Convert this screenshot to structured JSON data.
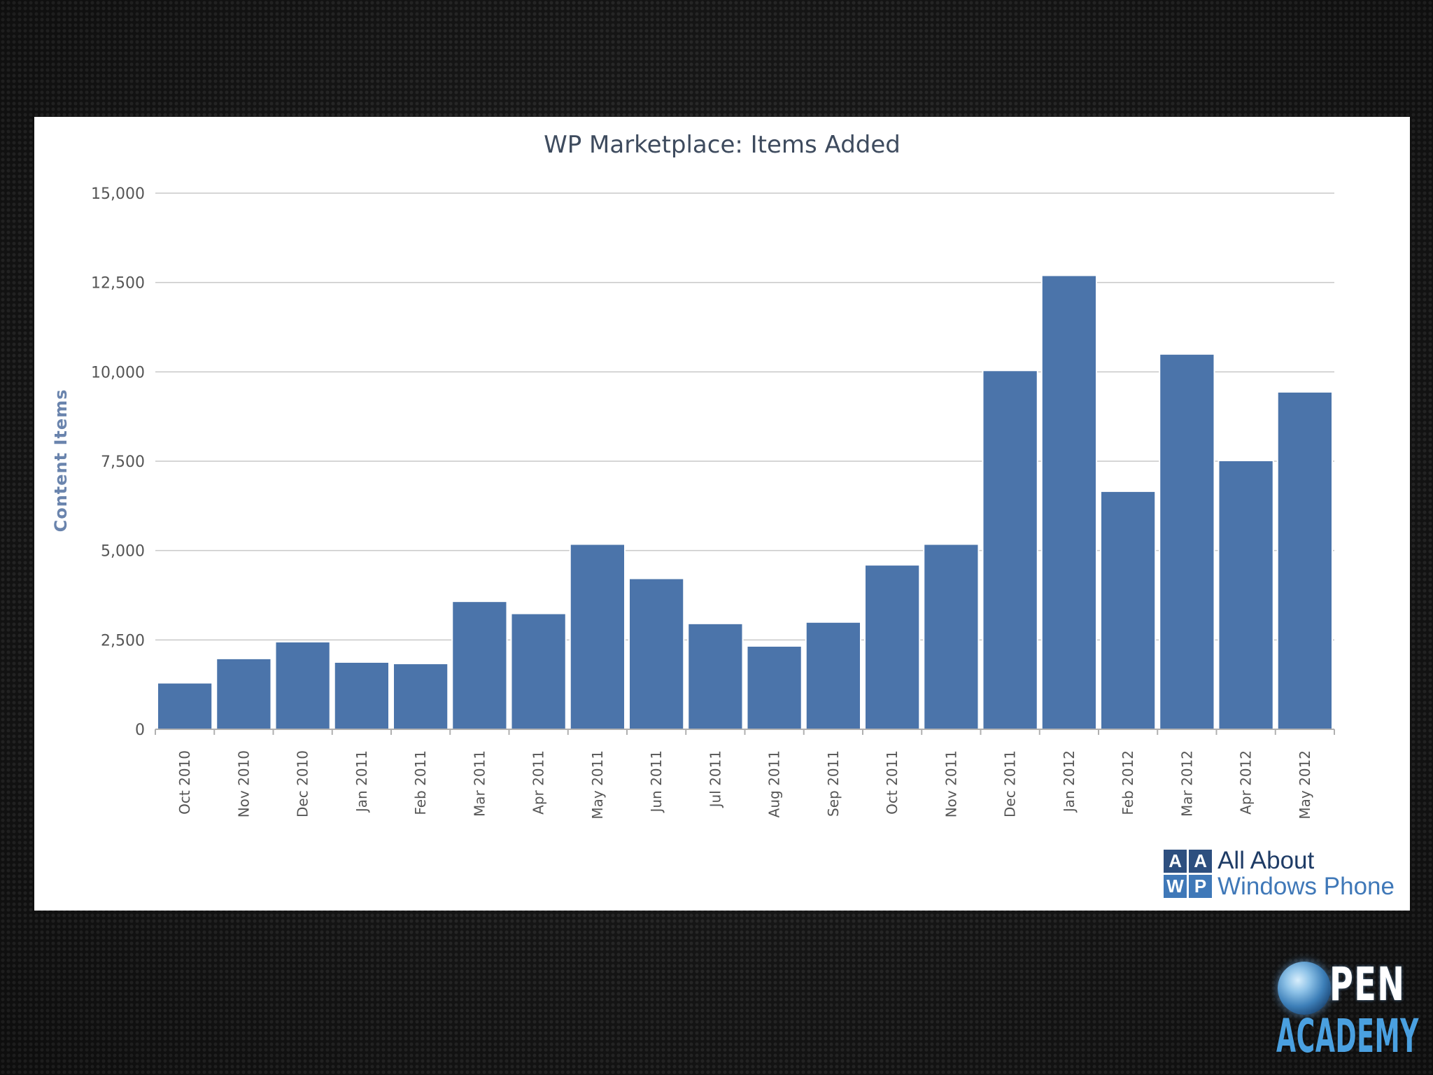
{
  "chart_data": {
    "type": "bar",
    "title": "WP Marketplace: Items Added",
    "xlabel": "",
    "ylabel": "Content Items",
    "ylim": [
      0,
      15000
    ],
    "yticks": [
      0,
      2500,
      5000,
      7500,
      10000,
      12500,
      15000
    ],
    "ytick_labels": [
      "0",
      "2,500",
      "5,000",
      "7,500",
      "10,000",
      "12,500",
      "15,000"
    ],
    "categories": [
      "Oct 2010",
      "Nov 2010",
      "Dec 2010",
      "Jan 2011",
      "Feb 2011",
      "Mar 2011",
      "Apr 2011",
      "May 2011",
      "Jun 2011",
      "Jul 2011",
      "Aug 2011",
      "Sep 2011",
      "Oct 2011",
      "Nov 2011",
      "Dec 2011",
      "Jan 2012",
      "Feb 2012",
      "Mar 2012",
      "Apr 2012",
      "May 2012"
    ],
    "series": [
      {
        "name": "Items Added",
        "values": [
          1300,
          1980,
          2450,
          1880,
          1840,
          3580,
          3240,
          5180,
          4220,
          2960,
          2330,
          3000,
          4600,
          5180,
          10040,
          12700,
          6660,
          10500,
          7520,
          9440
        ]
      }
    ],
    "grid": true,
    "colors": {
      "bar": "#4b74aa",
      "grid": "#c8c8c8",
      "title": "#3e4b5e",
      "ylabel": "#6a84ad"
    }
  },
  "branding": {
    "logo_cells": [
      "A",
      "A",
      "W",
      "P"
    ],
    "logo_line1": "All About",
    "logo_line2": "Windows Phone",
    "open_academy_top": "PEN",
    "open_academy_bottom": "ACADEMY"
  }
}
